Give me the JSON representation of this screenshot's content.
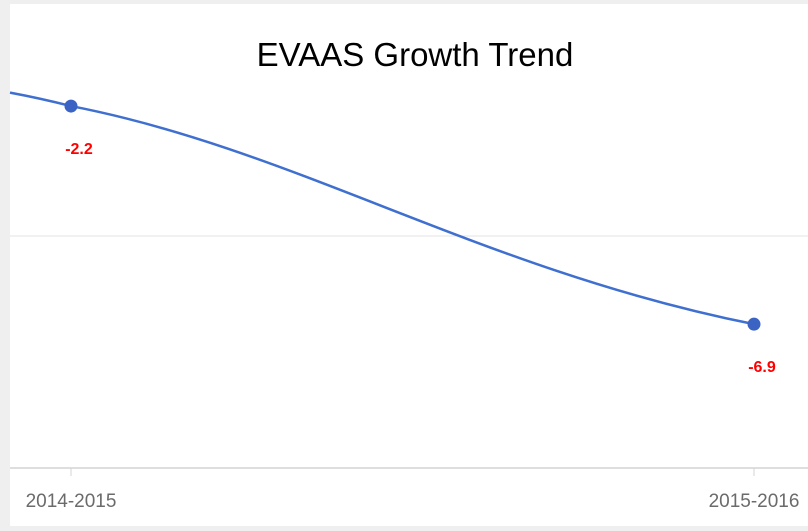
{
  "chart_data": {
    "type": "line",
    "title": "EVAAS Growth Trend",
    "xlabel": "",
    "ylabel": "",
    "categories": [
      "2014-2015",
      "2015-2016"
    ],
    "series": [
      {
        "values": [
          -2.2,
          -6.9
        ],
        "data_labels": [
          "-2.2",
          "-6.9"
        ]
      }
    ],
    "ylim": [
      -10,
      0
    ],
    "grid": true,
    "legend": "none",
    "colors": {
      "line": "#3f6fcf",
      "point": "#3a63c4",
      "data_label": "#ff0000",
      "grid": "#e3e3e3",
      "axis": "#d4d4d4",
      "tick_label": "#6b6b6b",
      "title": "#000000",
      "plot_background": "#ffffff",
      "page_background": "#efefef"
    }
  }
}
